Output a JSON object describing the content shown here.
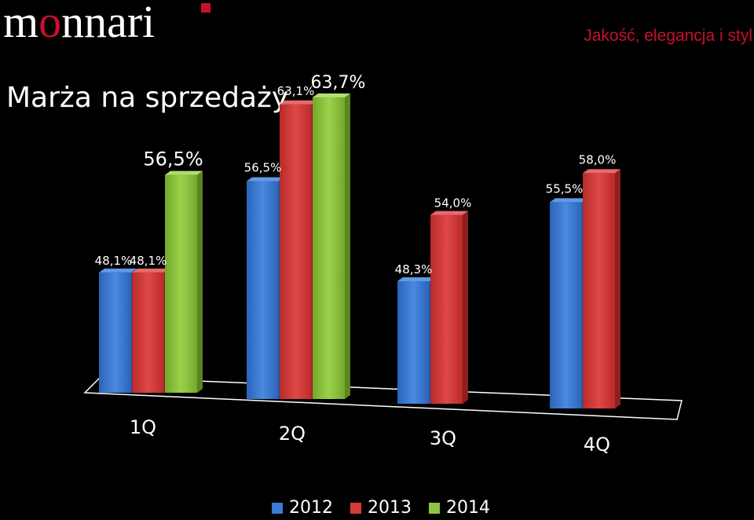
{
  "header": {
    "logo_text": "monnari",
    "tagline": "Jakość, elegancja i styl"
  },
  "chart_data": {
    "type": "bar",
    "title": "Marża na sprzedaży",
    "categories": [
      "1Q",
      "2Q",
      "3Q",
      "4Q"
    ],
    "series": [
      {
        "name": "2012",
        "color": "#3a7bd5",
        "values": [
          48.1,
          56.5,
          48.3,
          55.5
        ]
      },
      {
        "name": "2013",
        "color": "#d63a3a",
        "values": [
          48.1,
          63.1,
          54.0,
          58.0
        ]
      },
      {
        "name": "2014",
        "color": "#8cc63e",
        "values": [
          56.5,
          63.7,
          null,
          null
        ]
      }
    ],
    "data_labels": [
      [
        "48,1%",
        "48,1%",
        "56,5%"
      ],
      [
        "56,5%",
        "63,1%",
        "63,7%"
      ],
      [
        "48,3%",
        "54,0%",
        null
      ],
      [
        "55,5%",
        "58,0%",
        null
      ]
    ],
    "legend_position": "bottom",
    "grid": false
  }
}
